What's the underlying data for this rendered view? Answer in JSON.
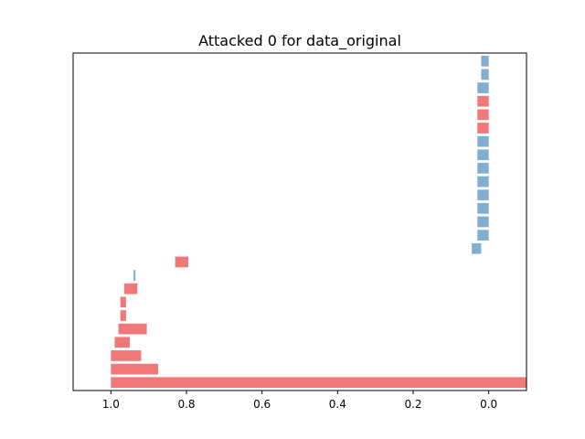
{
  "chart_data": {
    "type": "bar",
    "orientation": "horizontal",
    "title": "Attacked 0 for data_original",
    "xlabel": "",
    "ylabel": "",
    "x_axis_inverted": true,
    "xlim": [
      1.1,
      -0.1
    ],
    "x_ticks": [
      "1.0",
      "0.8",
      "0.6",
      "0.4",
      "0.2",
      "0.0"
    ],
    "x_tick_values": [
      1.0,
      0.8,
      0.6,
      0.4,
      0.2,
      0.0
    ],
    "y_ticks_shown": false,
    "grid": false,
    "legend": "none",
    "colors": {
      "red": "#f07878",
      "blue": "#82aed2"
    },
    "bars": [
      {
        "start": 1.0,
        "end": -0.1,
        "color": "red"
      },
      {
        "start": 1.0,
        "end": 0.875,
        "color": "red"
      },
      {
        "start": 1.0,
        "end": 0.92,
        "color": "red"
      },
      {
        "start": 0.99,
        "end": 0.95,
        "color": "red"
      },
      {
        "start": 0.98,
        "end": 0.905,
        "color": "red"
      },
      {
        "start": 0.975,
        "end": 0.96,
        "color": "red"
      },
      {
        "start": 0.975,
        "end": 0.96,
        "color": "red"
      },
      {
        "start": 0.965,
        "end": 0.93,
        "color": "red"
      },
      {
        "start": 0.94,
        "end": 0.935,
        "color": "blue"
      },
      {
        "start": 0.83,
        "end": 0.795,
        "color": "red"
      },
      {
        "start": 0.045,
        "end": 0.02,
        "color": "blue"
      },
      {
        "start": 0.03,
        "end": 0.0,
        "color": "blue"
      },
      {
        "start": 0.03,
        "end": 0.0,
        "color": "blue"
      },
      {
        "start": 0.03,
        "end": 0.0,
        "color": "blue"
      },
      {
        "start": 0.03,
        "end": 0.0,
        "color": "blue"
      },
      {
        "start": 0.03,
        "end": 0.0,
        "color": "blue"
      },
      {
        "start": 0.03,
        "end": 0.0,
        "color": "blue"
      },
      {
        "start": 0.03,
        "end": 0.0,
        "color": "blue"
      },
      {
        "start": 0.03,
        "end": 0.0,
        "color": "blue"
      },
      {
        "start": 0.03,
        "end": 0.0,
        "color": "red"
      },
      {
        "start": 0.03,
        "end": 0.0,
        "color": "red"
      },
      {
        "start": 0.03,
        "end": 0.0,
        "color": "red"
      },
      {
        "start": 0.03,
        "end": 0.0,
        "color": "blue"
      },
      {
        "start": 0.02,
        "end": 0.0,
        "color": "blue"
      },
      {
        "start": 0.02,
        "end": 0.0,
        "color": "blue"
      }
    ]
  }
}
